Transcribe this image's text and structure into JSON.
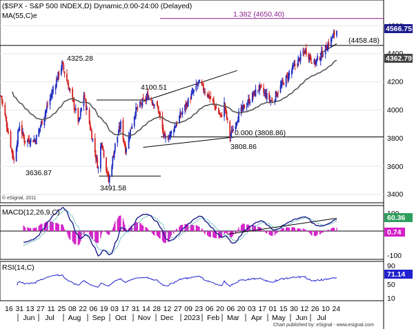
{
  "header": {
    "title": "($SPX - S&P 500 INDEX,D) Dynamic,0:00-24:00 (Delayed)",
    "ma_label": "MA(55,C)e"
  },
  "panels": {
    "macd_label": "MACD(12,26,9,C)",
    "rsi_label": "RSI(14,C)",
    "macd_value": "60.36",
    "macd_hist_value": "0.74",
    "rsi_value": "71.14"
  },
  "footer": {
    "copyright": "© eSignal, 2011",
    "publisher": "Chart published by: eSignal - www.esignal.com"
  },
  "price_axis": {
    "ticks": [
      "4600",
      "4400",
      "4200",
      "4000",
      "3800",
      "3600",
      "3400"
    ],
    "last_price": "4566.75",
    "ma_value": "4362.79",
    "colors": {
      "last_price_bg": "#1a1a8c",
      "ma_bg": "#444444"
    }
  },
  "macd_axis": {
    "ticks": [
      "100",
      "0",
      "-100"
    ]
  },
  "rsi_axis": {
    "ticks": [
      "90",
      "50",
      "10"
    ]
  },
  "date_axis": {
    "days": [
      "16",
      "31",
      "13",
      "27",
      "11",
      "25",
      "08",
      "22",
      "06",
      "19",
      "03",
      "17",
      "31",
      "14",
      "28",
      "12",
      "27",
      "09",
      "23",
      "06",
      "20",
      "06",
      "20",
      "03",
      "17",
      "01",
      "15",
      "30",
      "12",
      "26",
      "10",
      "24"
    ],
    "months": [
      "Jun",
      "Jul",
      "Aug",
      "Sep",
      "Oct",
      "Nov",
      "Dec",
      "2023",
      "Feb",
      "Mar",
      "Apr",
      "May",
      "Jun",
      "Jul"
    ]
  },
  "annotations": {
    "fib": "1.382 (4650.40)",
    "level_4458": "(4458.48)",
    "h1": "4325.28",
    "h2": "4100.51",
    "l1": "3636.87",
    "l2": "3491.58",
    "l3": "3808.86",
    "fib0": "0.000 (3808.86)"
  },
  "chart_data": {
    "type": "candlestick",
    "title": "($SPX - S&P 500 INDEX,D) Dynamic,0:00-24:00 (Delayed)",
    "ylim": [
      3380,
      4690
    ],
    "moving_average": "MA(55,C)e",
    "ma_last": 4362.79,
    "last_close": 4566.75,
    "key_points": [
      {
        "date": "2022-06-17",
        "value": 3636.87,
        "label": "3636.87"
      },
      {
        "date": "2022-08-16",
        "value": 4325.28,
        "label": "4325.28"
      },
      {
        "date": "2022-10-13",
        "value": 3491.58,
        "label": "3491.58"
      },
      {
        "date": "2022-12-01",
        "value": 4100.51,
        "label": "4100.51"
      },
      {
        "date": "2023-03-13",
        "value": 3808.86,
        "label": "3808.86"
      },
      {
        "date": "2023-07-24",
        "value": 4566.75,
        "label": "4566.75"
      }
    ],
    "levels": [
      {
        "value": 4650.4,
        "label": "1.382 (4650.40)",
        "color": "#8b1a8b"
      },
      {
        "value": 4458.48,
        "label": "(4458.48)",
        "color": "#000000"
      },
      {
        "value": 3808.86,
        "label": "0.000 (3808.86)",
        "color": "#000000"
      }
    ],
    "indicators": {
      "macd": {
        "name": "MACD(12,26,9,C)",
        "last": 60.36,
        "hist_last": 0.74,
        "ylim": [
          -130,
          130
        ]
      },
      "rsi": {
        "name": "RSI(14,C)",
        "last": 71.14,
        "ylim": [
          0,
          100
        ]
      }
    },
    "colors": {
      "up": "#1f2bbf",
      "down": "#d42020",
      "ma": "#555555",
      "macd": "#1a1a8c",
      "signal": "#3aa8a8",
      "hist": "#d420c8",
      "rsi": "#2020d0"
    }
  }
}
